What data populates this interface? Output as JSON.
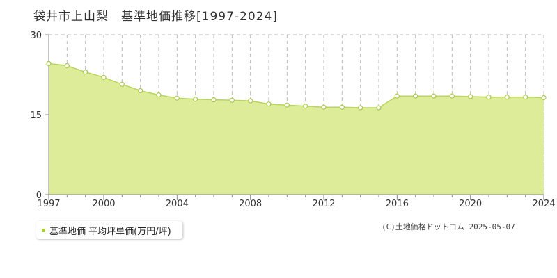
{
  "title": "袋井市上山梨　基準地価推移[1997-2024]",
  "legend": {
    "label": "基準地価 平均坪単価(万円/坪)"
  },
  "copyright": "(C)土地価格ドットコム 2025-05-07",
  "colors": {
    "fill": "#dcec98",
    "line": "#b7d65a",
    "marker_stroke": "#a9c84c",
    "marker_fill": "#ffffff",
    "grid": "#bbbbbb",
    "axis": "#888888",
    "legend_marker": "#a8cc3a"
  },
  "chart_data": {
    "type": "area",
    "x": [
      1997,
      1998,
      1999,
      2000,
      2001,
      2002,
      2003,
      2004,
      2005,
      2006,
      2007,
      2008,
      2009,
      2010,
      2011,
      2012,
      2013,
      2014,
      2015,
      2016,
      2017,
      2018,
      2019,
      2020,
      2021,
      2022,
      2023,
      2024
    ],
    "series": [
      {
        "name": "基準地価 平均坪単価(万円/坪)",
        "values": [
          24.6,
          24.2,
          23.0,
          22.0,
          20.7,
          19.5,
          18.7,
          18.1,
          17.9,
          17.8,
          17.7,
          17.6,
          17.0,
          16.8,
          16.6,
          16.4,
          16.4,
          16.3,
          16.3,
          18.5,
          18.5,
          18.5,
          18.5,
          18.4,
          18.3,
          18.3,
          18.3,
          18.2
        ]
      }
    ],
    "xticks": [
      1997,
      2000,
      2004,
      2008,
      2012,
      2016,
      2020,
      2024
    ],
    "yticks": [
      0,
      15,
      30
    ],
    "xlim": [
      1997,
      2024
    ],
    "ylim": [
      0,
      30
    ],
    "grid": true
  }
}
